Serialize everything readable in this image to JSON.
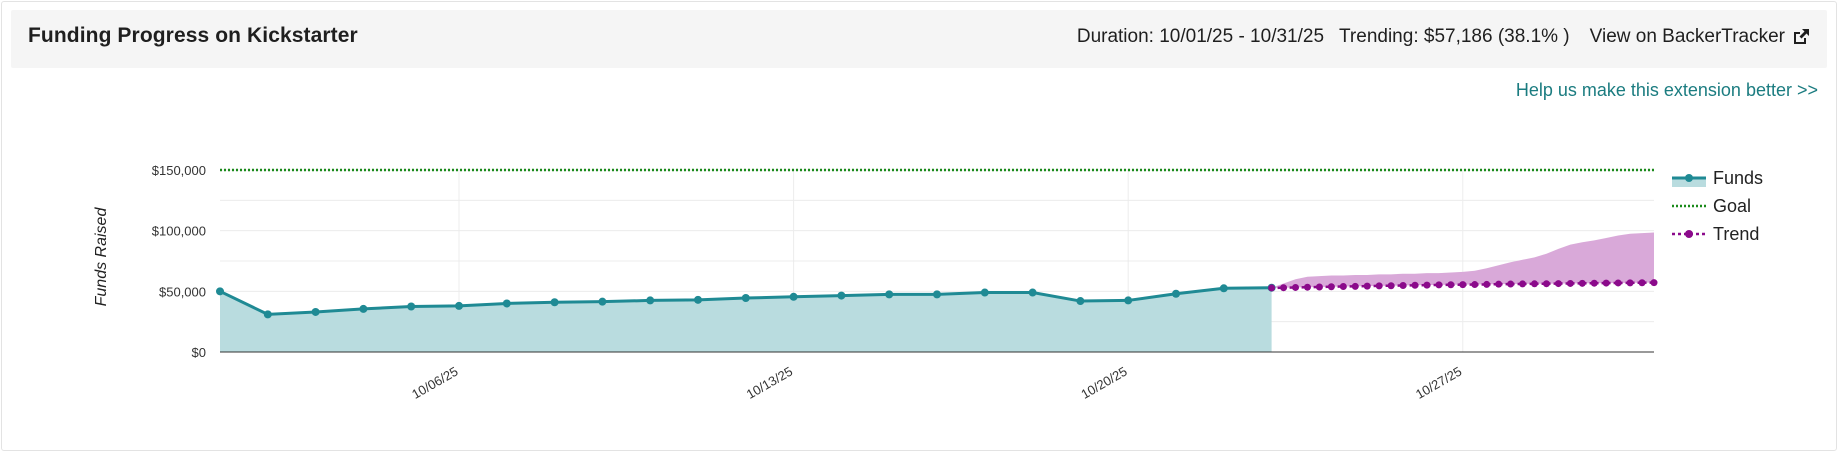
{
  "header": {
    "title": "Funding Progress on Kickstarter",
    "duration": "Duration: 10/01/25 - 10/31/25",
    "trending": "Trending: $57,186 (38.1% )",
    "view_link": "View on BackerTracker"
  },
  "help_link": "Help us make this extension better >>",
  "icons": {
    "external": "external-link-icon"
  },
  "chart_data": {
    "type": "line",
    "ylabel": "Funds Raised",
    "ylim": [
      0,
      150000
    ],
    "yticks": [
      0,
      50000,
      100000,
      150000
    ],
    "ytick_labels": [
      "$0",
      "$50,000",
      "$100,000",
      "$150,000"
    ],
    "xlim": [
      "10/01/25",
      "10/31/25"
    ],
    "xtick_dates": [
      "10/06/25",
      "10/13/25",
      "10/20/25",
      "10/27/25"
    ],
    "xtick_labels": [
      "10/06/25",
      "10/13/25",
      "10/20/25",
      "10/27/25"
    ],
    "grid": true,
    "legend": "right",
    "goal": {
      "name": "Goal",
      "value": 150000,
      "color": "#1a8a1a"
    },
    "series": [
      {
        "name": "Funds",
        "color": "#1f8a94",
        "fill": "#b9dcdf",
        "x": [
          "10/01/25",
          "10/02/25",
          "10/03/25",
          "10/04/25",
          "10/05/25",
          "10/06/25",
          "10/07/25",
          "10/08/25",
          "10/09/25",
          "10/10/25",
          "10/11/25",
          "10/12/25",
          "10/13/25",
          "10/14/25",
          "10/15/25",
          "10/16/25",
          "10/17/25",
          "10/18/25",
          "10/19/25",
          "10/20/25",
          "10/21/25",
          "10/22/25",
          "10/23/25"
        ],
        "values": [
          50000,
          31000,
          33000,
          35500,
          37500,
          38000,
          40000,
          41000,
          41500,
          42500,
          43000,
          44500,
          45500,
          46500,
          47500,
          47500,
          49000,
          49000,
          42000,
          42500,
          48000,
          52500,
          53000
        ]
      },
      {
        "name": "Trend",
        "color": "#8b0a8b",
        "band_fill": "#d9a9d9",
        "x": [
          "10/23/25",
          "10/23/25 06:00",
          "10/23/25 12:00",
          "10/23/25 18:00",
          "10/24/25",
          "10/24/25 06:00",
          "10/24/25 12:00",
          "10/24/25 18:00",
          "10/25/25",
          "10/25/25 06:00",
          "10/25/25 12:00",
          "10/25/25 18:00",
          "10/26/25",
          "10/26/25 06:00",
          "10/26/25 12:00",
          "10/26/25 18:00",
          "10/27/25",
          "10/27/25 06:00",
          "10/27/25 12:00",
          "10/27/25 18:00",
          "10/28/25",
          "10/28/25 06:00",
          "10/28/25 12:00",
          "10/28/25 18:00",
          "10/29/25",
          "10/29/25 06:00",
          "10/29/25 12:00",
          "10/29/25 18:00",
          "10/30/25",
          "10/30/25 06:00",
          "10/30/25 12:00",
          "10/30/25 18:00",
          "10/31/25"
        ],
        "values": [
          52800,
          53000,
          53200,
          53400,
          53600,
          53800,
          54000,
          54100,
          54300,
          54500,
          54600,
          54800,
          55000,
          55100,
          55300,
          55400,
          55500,
          55600,
          55700,
          55900,
          56000,
          56100,
          56200,
          56300,
          56400,
          56500,
          56600,
          56700,
          56800,
          56900,
          57000,
          57100,
          57186
        ],
        "upper": [
          53000,
          56500,
          60000,
          62000,
          62500,
          63000,
          63000,
          63500,
          63500,
          64000,
          64000,
          64500,
          64500,
          65000,
          65000,
          65500,
          66000,
          67000,
          69000,
          71500,
          74000,
          76000,
          78000,
          81000,
          85000,
          88500,
          90500,
          92000,
          94000,
          96000,
          97500,
          98000,
          98500
        ]
      }
    ]
  }
}
